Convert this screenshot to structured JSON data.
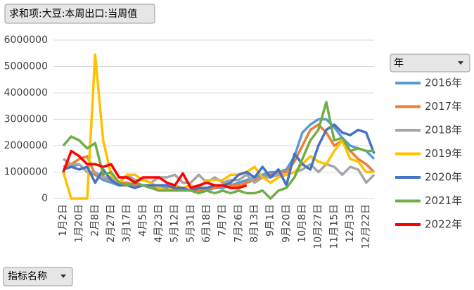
{
  "chart_data": {
    "type": "line",
    "filter_button": "求和项:大豆:本周出口:当周值",
    "legend_title": "年",
    "axis_button": "指标名称",
    "categories": [
      "1月2日",
      null,
      "1月20日",
      null,
      "2月8日",
      null,
      "2月27日",
      null,
      "3月17日",
      null,
      "4月5日",
      null,
      "4月23日",
      null,
      "5月12日",
      null,
      "5月31日",
      null,
      "6月18日",
      null,
      "7月7日",
      null,
      "7月26日",
      null,
      "8月13日",
      null,
      "9月1日",
      null,
      "9月20日",
      null,
      "10月8日",
      null,
      "10月27日",
      null,
      "11月15日",
      null,
      "12月3日",
      null,
      "12月22日",
      null
    ],
    "ylim": [
      0,
      6000000
    ],
    "yticks": [
      0,
      1000000,
      2000000,
      3000000,
      4000000,
      5000000,
      6000000
    ],
    "grid": true,
    "legend": "right",
    "series": [
      {
        "name": "2016年",
        "color": "#5b9bd5",
        "values": [
          1100000,
          1200000,
          1300000,
          1000000,
          900000,
          700000,
          600000,
          500000,
          600000,
          500000,
          500000,
          400000,
          400000,
          400000,
          400000,
          300000,
          300000,
          300000,
          300000,
          400000,
          400000,
          500000,
          600000,
          700000,
          800000,
          900000,
          1000000,
          1000000,
          1100000,
          1600000,
          2500000,
          2800000,
          3000000,
          3000000,
          2700000,
          2300000,
          2000000,
          1900000,
          1800000,
          1500000
        ]
      },
      {
        "name": "2017年",
        "color": "#ed7d31",
        "values": [
          1200000,
          1300000,
          1500000,
          1600000,
          900000,
          800000,
          700000,
          600000,
          600000,
          500000,
          500000,
          400000,
          400000,
          300000,
          400000,
          300000,
          300000,
          300000,
          400000,
          400000,
          500000,
          500000,
          500000,
          600000,
          700000,
          800000,
          900000,
          1000000,
          1000000,
          1400000,
          2000000,
          2600000,
          2800000,
          2500000,
          2000000,
          2200000,
          1800000,
          1500000,
          1300000,
          1000000
        ]
      },
      {
        "name": "2018年",
        "color": "#a5a5a5",
        "values": [
          1500000,
          1300000,
          1300000,
          1000000,
          1000000,
          800000,
          800000,
          600000,
          900000,
          700000,
          700000,
          600000,
          800000,
          800000,
          900000,
          600000,
          600000,
          900000,
          600000,
          800000,
          600000,
          700000,
          700000,
          900000,
          600000,
          800000,
          800000,
          900000,
          900000,
          1000000,
          1100000,
          1300000,
          1000000,
          1300000,
          1200000,
          900000,
          1200000,
          1100000,
          600000,
          900000
        ]
      },
      {
        "name": "2019年",
        "color": "#ffc000",
        "values": [
          1000000,
          0,
          0,
          0,
          5450000,
          2200000,
          900000,
          600000,
          900000,
          900000,
          700000,
          600000,
          400000,
          300000,
          500000,
          400000,
          500000,
          400000,
          700000,
          700000,
          700000,
          900000,
          900000,
          1000000,
          1200000,
          800000,
          600000,
          800000,
          900000,
          1000000,
          1300000,
          1600000,
          1400000,
          1300000,
          1800000,
          2200000,
          1500000,
          1400000,
          1000000,
          1000000
        ]
      },
      {
        "name": "2020年",
        "color": "#4472c4",
        "values": [
          1100000,
          1200000,
          1100000,
          1200000,
          600000,
          1100000,
          700000,
          500000,
          500000,
          400000,
          500000,
          500000,
          500000,
          500000,
          400000,
          400000,
          300000,
          400000,
          400000,
          500000,
          500000,
          600000,
          900000,
          1000000,
          800000,
          1200000,
          800000,
          1100000,
          500000,
          1700000,
          1300000,
          1100000,
          2000000,
          2600000,
          2800000,
          2500000,
          2400000,
          2600000,
          2500000,
          1700000
        ]
      },
      {
        "name": "2021年",
        "color": "#70ad47",
        "values": [
          2000000,
          2350000,
          2200000,
          1900000,
          2100000,
          900000,
          1000000,
          600000,
          500000,
          600000,
          500000,
          400000,
          300000,
          300000,
          300000,
          300000,
          300000,
          200000,
          300000,
          200000,
          300000,
          200000,
          300000,
          200000,
          200000,
          300000,
          0,
          300000,
          400000,
          800000,
          1500000,
          2200000,
          2600000,
          3650000,
          2200000,
          2300000,
          1800000,
          1900000,
          1800000,
          1800000
        ]
      },
      {
        "name": "2022年",
        "color": "#ff0000",
        "values": [
          1000000,
          1800000,
          1600000,
          1300000,
          1300000,
          1200000,
          1300000,
          800000,
          800000,
          600000,
          800000,
          800000,
          800000,
          600000,
          500000,
          950000,
          400000,
          500000,
          600000,
          500000,
          500000,
          400000,
          400000,
          500000,
          null,
          null,
          null,
          null,
          null,
          null,
          null,
          null,
          null,
          null,
          null,
          null,
          null,
          null,
          null,
          null
        ]
      }
    ]
  }
}
